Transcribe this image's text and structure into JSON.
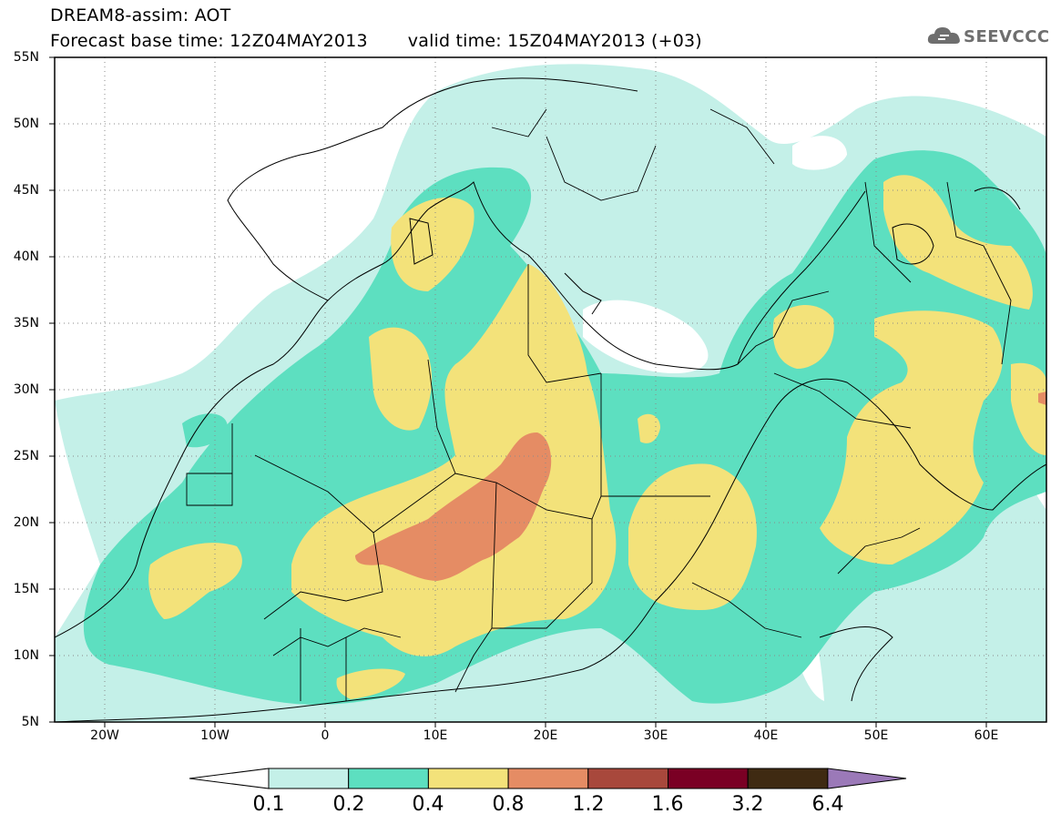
{
  "header": {
    "title_line1": "DREAM8-assim: AOT",
    "base_time": "Forecast base time: 12Z04MAY2013",
    "valid_time": "valid time: 15Z04MAY2013 (+03)",
    "logo_text": "SEEVCCC",
    "logo_icon": "cloud-icon"
  },
  "map": {
    "variable": "AOT",
    "extent": {
      "lon": [
        -25,
        65
      ],
      "lat": [
        5,
        55
      ]
    },
    "lat_labels": [
      "55N",
      "50N",
      "45N",
      "40N",
      "35N",
      "30N",
      "25N",
      "20N",
      "15N",
      "10N",
      "5N"
    ],
    "lon_labels": [
      "20W",
      "10W",
      "0",
      "10E",
      "20E",
      "30E",
      "40E",
      "50E",
      "60E"
    ],
    "grid": "dotted",
    "background_color": "#ffffff",
    "coastline_color": "#000000"
  },
  "colorbar": {
    "labels": [
      "0.1",
      "0.2",
      "0.4",
      "0.8",
      "1.2",
      "1.6",
      "3.2",
      "6.4"
    ],
    "colors": [
      "#ffffff",
      "#c4f0e8",
      "#5ddfc0",
      "#f3e27a",
      "#e58c64",
      "#a8483c",
      "#7a0024",
      "#3f2a12",
      "#9b79b8"
    ]
  }
}
